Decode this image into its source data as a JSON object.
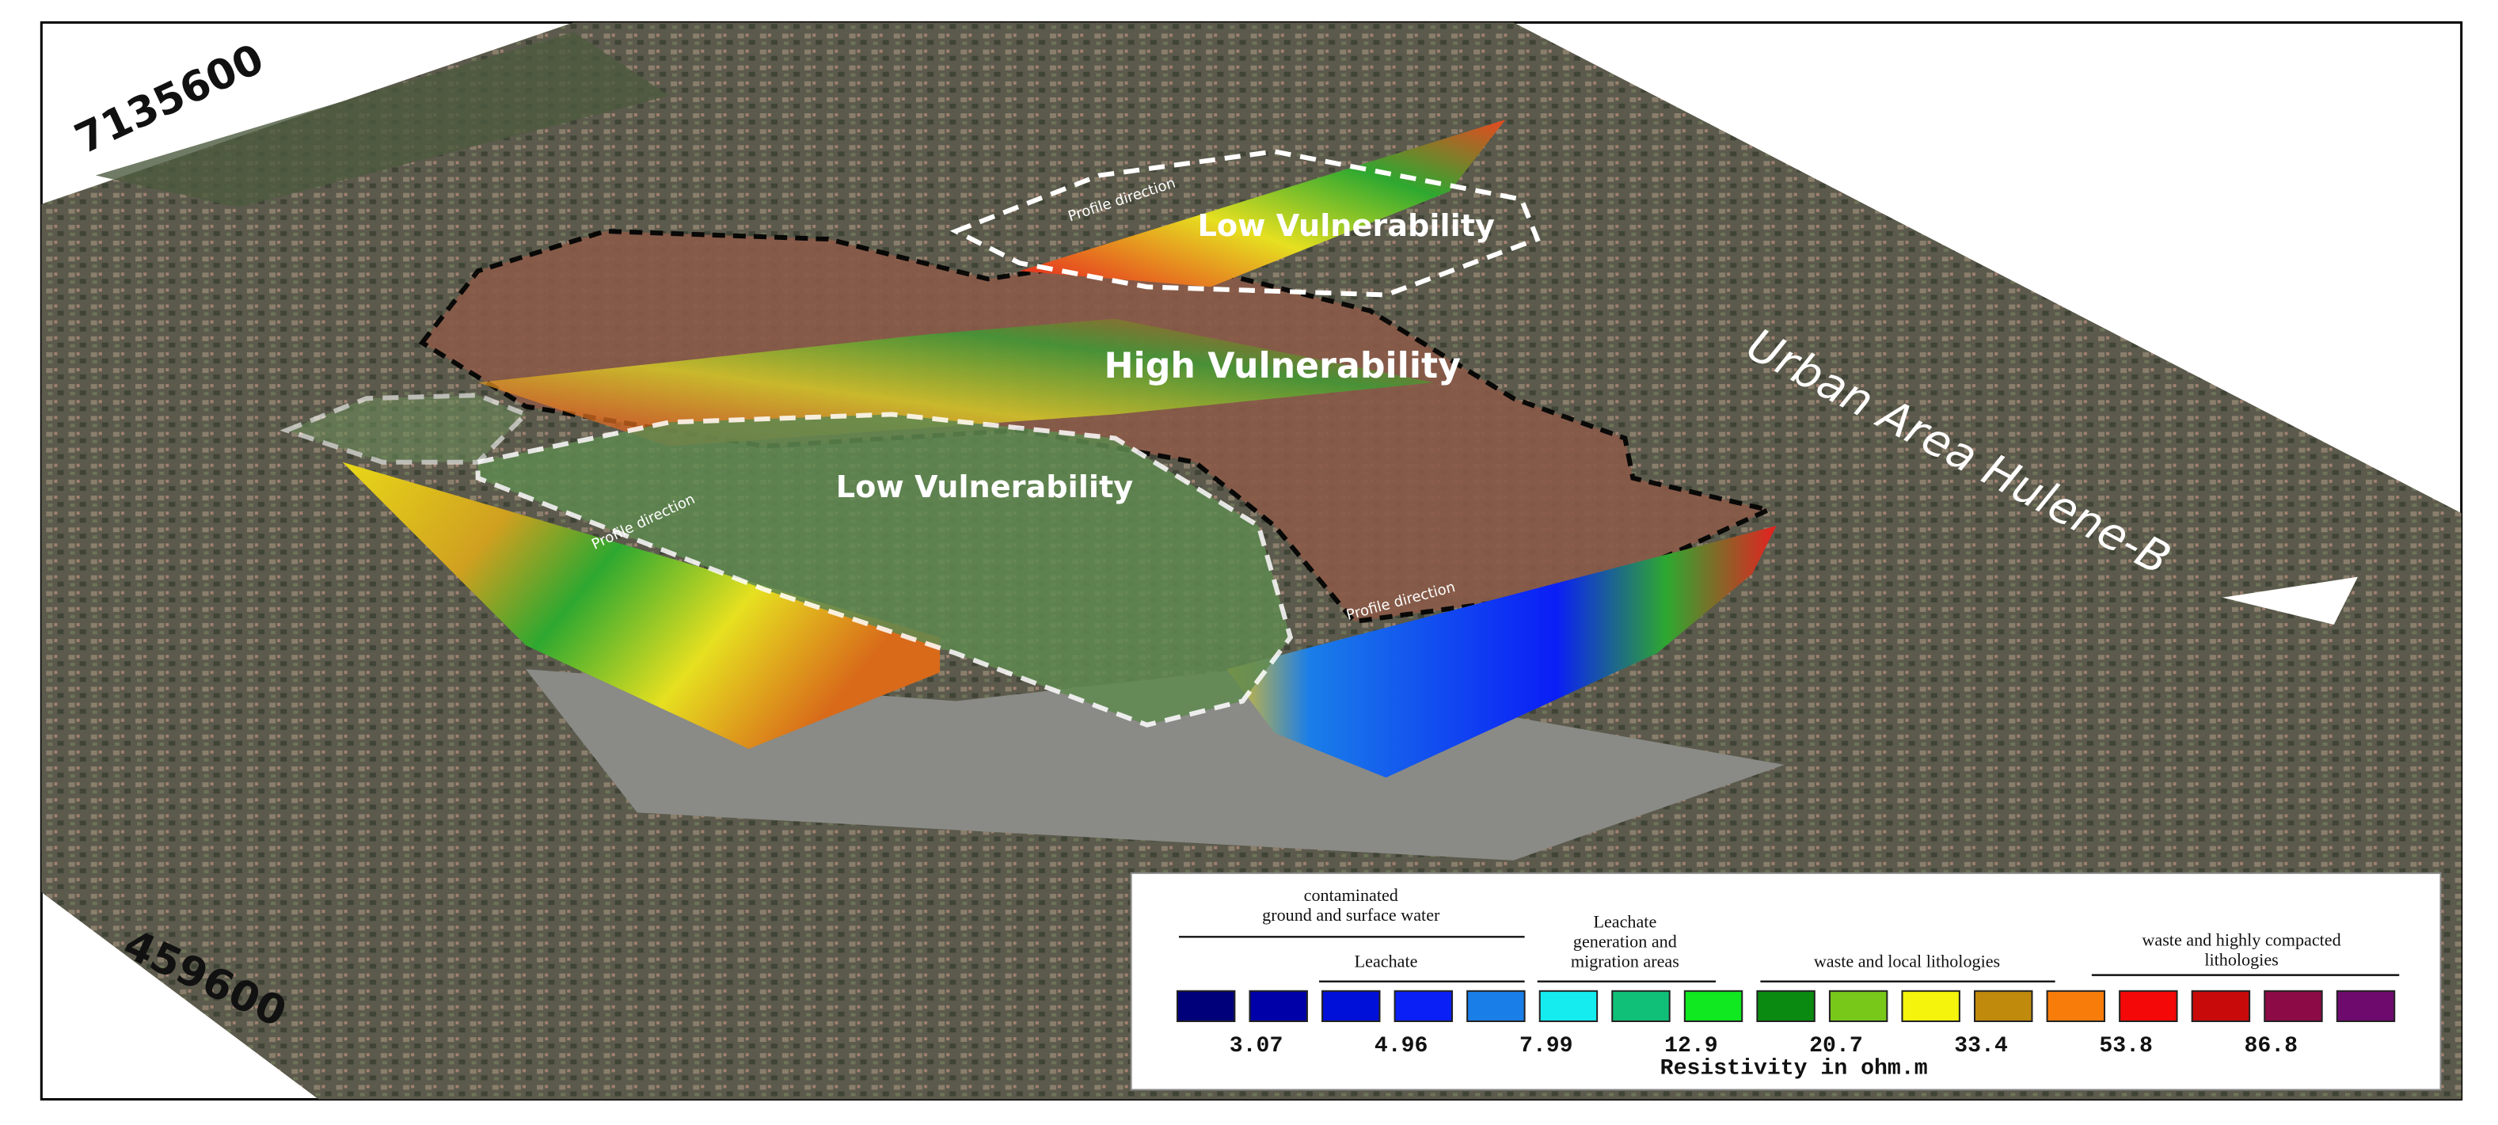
{
  "map": {
    "coordinates": {
      "north": "7135600",
      "east": "459600"
    },
    "vulnerability_labels": [
      "Low Vulnerability",
      "High Vulnerability",
      "Low Vulnerability"
    ],
    "area_label": "Urban Area Hulene-B",
    "profile_labels": [
      "Profile direction",
      "Profile direction",
      "Profile direction"
    ]
  },
  "legend": {
    "groups": [
      {
        "lines": [
          "contaminated",
          "ground and surface water"
        ]
      },
      {
        "lines": [
          "Leachate"
        ]
      },
      {
        "lines": [
          "Leachate",
          "generation and",
          "migration areas"
        ]
      },
      {
        "lines": [
          "waste and local lithologies"
        ]
      },
      {
        "lines": [
          "waste and highly compacted",
          "lithologies"
        ]
      }
    ],
    "colors": [
      "#00007a",
      "#0000a8",
      "#0010d8",
      "#0a1ef6",
      "#1a7ee8",
      "#14ecf0",
      "#11c078",
      "#10e820",
      "#0a8a10",
      "#78c81a",
      "#f4f40c",
      "#c08a0c",
      "#f87c0a",
      "#f40808",
      "#c80a0a",
      "#8c0a46",
      "#6e0a6e"
    ],
    "values": [
      "3.07",
      "4.96",
      "7.99",
      "12.9",
      "20.7",
      "33.4",
      "53.8",
      "86.8"
    ],
    "unit_label": "Resistivity in ohm.m"
  }
}
